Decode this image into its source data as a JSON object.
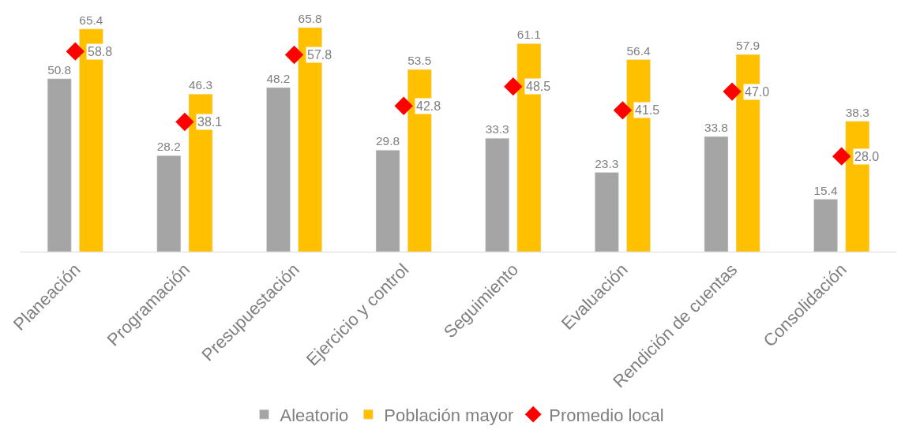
{
  "chart_data": {
    "type": "bar",
    "categories": [
      "Planeación",
      "Programación",
      "Presupuestación",
      "Ejercicio y control",
      "Seguimiento",
      "Evaluación",
      "Rendición de cuentas",
      "Consolidación"
    ],
    "series": [
      {
        "name": "Aleatorio",
        "color": "#a5a5a5",
        "values": [
          50.8,
          28.2,
          48.2,
          29.8,
          33.3,
          23.3,
          33.8,
          15.4
        ],
        "value_labels": [
          "50.8",
          "28.2",
          "48.2",
          "29.8",
          "33.3",
          "23.3",
          "33.8",
          "15.4"
        ]
      },
      {
        "name": "Población mayor",
        "color": "#ffc000",
        "values": [
          65.4,
          46.3,
          65.8,
          53.5,
          61.1,
          56.4,
          57.9,
          38.3
        ],
        "value_labels": [
          "65.4",
          "46.3",
          "65.8",
          "53.5",
          "61.1",
          "56.4",
          "57.9",
          "38.3"
        ]
      },
      {
        "name": "Promedio local",
        "type": "scatter",
        "marker": "diamond",
        "color": "#ff0000",
        "values": [
          58.8,
          38.1,
          57.8,
          42.8,
          48.5,
          41.5,
          47.0,
          28.0
        ],
        "value_labels": [
          "58.8",
          "38.1",
          "57.8",
          "42.8",
          "48.5",
          "41.5",
          "47.0",
          "28.0"
        ]
      }
    ],
    "legend": "bottom"
  }
}
